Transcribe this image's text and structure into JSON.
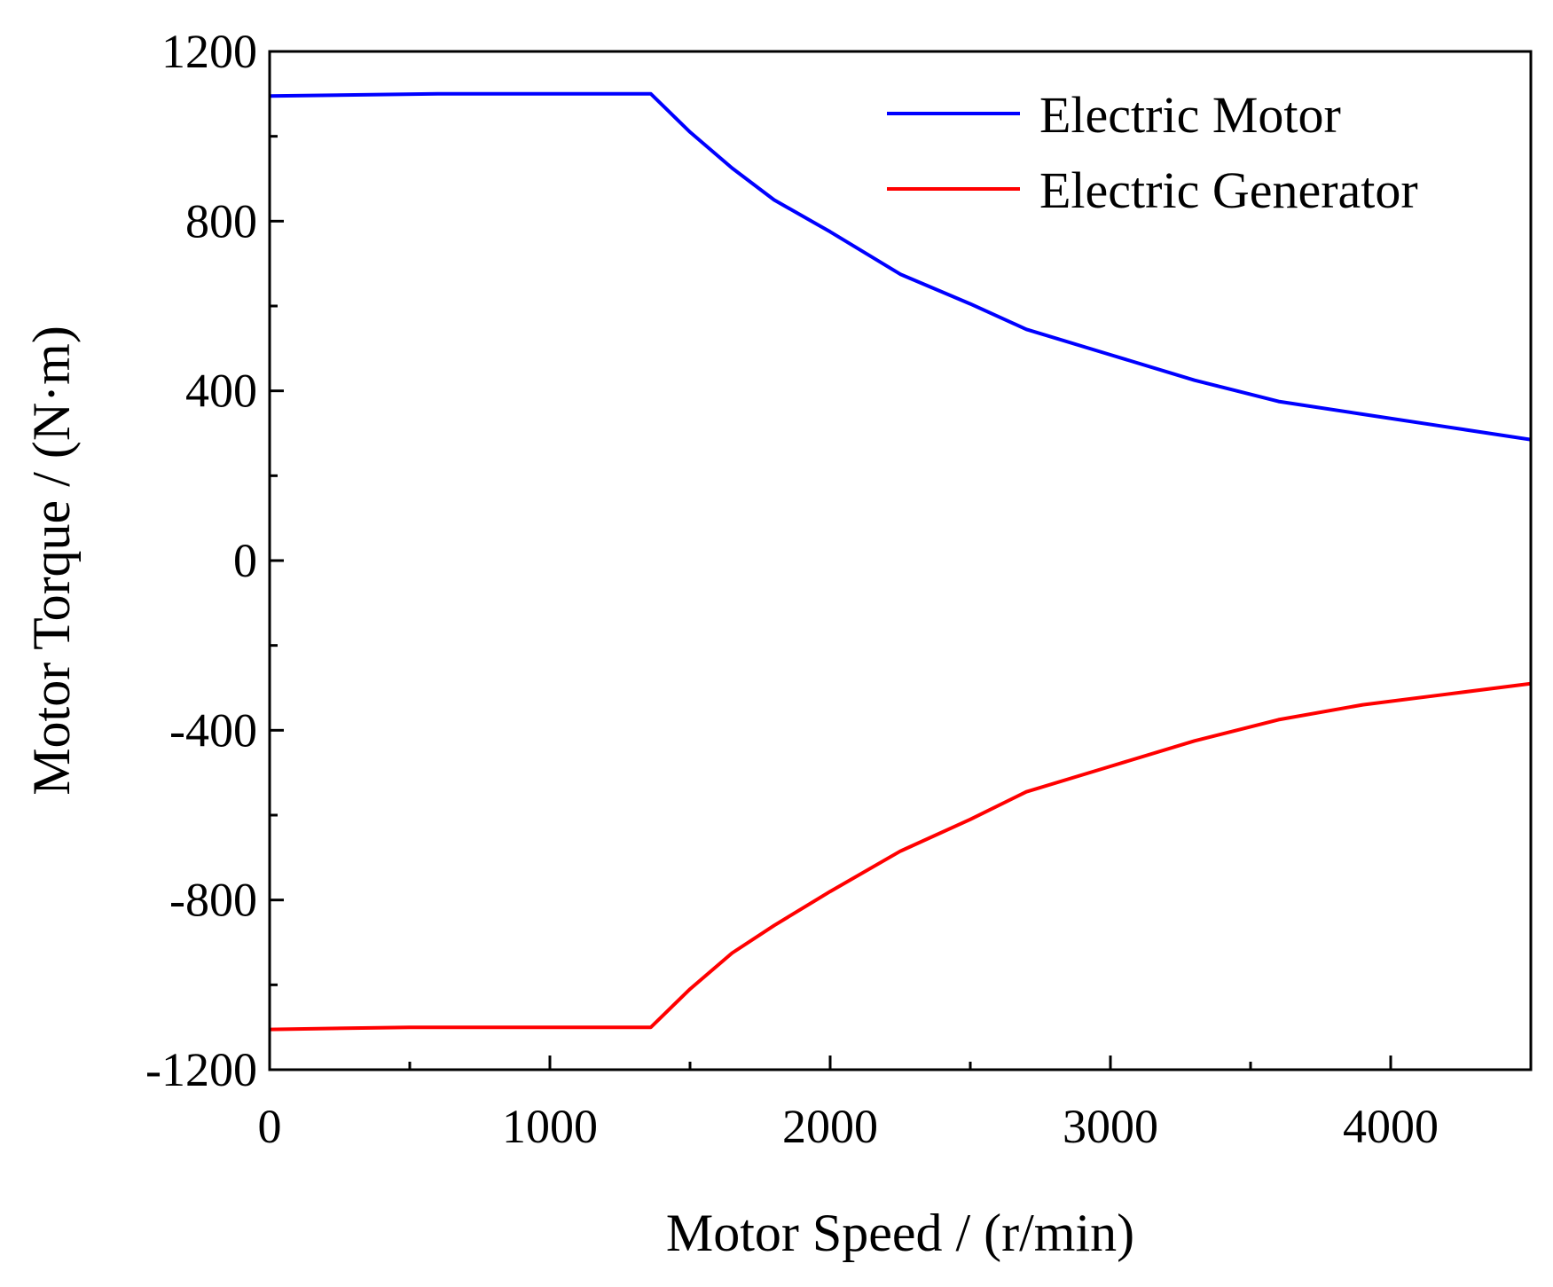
{
  "chart_data": {
    "type": "line",
    "title": "",
    "xlabel": "Motor Speed / (r/min)",
    "ylabel": "Motor Torque / (N·m)",
    "xlim": [
      0,
      4500
    ],
    "ylim": [
      -1200,
      1200
    ],
    "x_ticks": [
      0,
      1000,
      2000,
      3000,
      4000
    ],
    "y_ticks": [
      -1200,
      -800,
      -400,
      0,
      400,
      800,
      1200
    ],
    "x_tick_labels": [
      "0",
      "1000",
      "2000",
      "3000",
      "4000"
    ],
    "y_tick_labels": [
      "-1200",
      "-800",
      "-400",
      "0",
      "400",
      "800",
      "1200"
    ],
    "grid": false,
    "legend_position": "top-right",
    "series": [
      {
        "name": "Electric Motor",
        "color": "#0000ff",
        "x": [
          0,
          600,
          1360,
          1500,
          1650,
          1800,
          2000,
          2250,
          2500,
          2700,
          3000,
          3300,
          3600,
          3900,
          4200,
          4500
        ],
        "y": [
          1095,
          1100,
          1100,
          1010,
          925,
          850,
          775,
          675,
          605,
          545,
          485,
          425,
          375,
          345,
          315,
          285
        ]
      },
      {
        "name": "Electric Generator",
        "color": "#ff0000",
        "x": [
          0,
          500,
          1360,
          1500,
          1650,
          1800,
          2000,
          2250,
          2500,
          2700,
          3000,
          3300,
          3600,
          3900,
          4200,
          4500
        ],
        "y": [
          -1105,
          -1100,
          -1100,
          -1010,
          -925,
          -860,
          -780,
          -685,
          -610,
          -545,
          -485,
          -425,
          -375,
          -340,
          -315,
          -290
        ]
      }
    ]
  }
}
